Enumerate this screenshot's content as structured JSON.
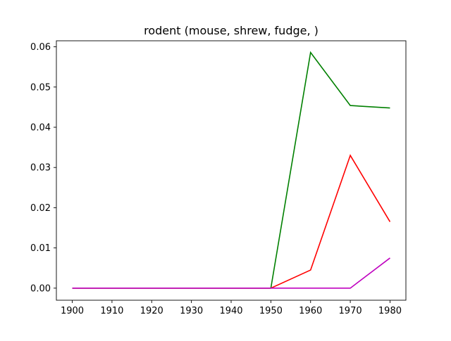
{
  "chart_data": {
    "type": "line",
    "title": "rodent (mouse, shrew, fudge, )",
    "xlabel": "",
    "ylabel": "",
    "x": [
      1900,
      1910,
      1920,
      1930,
      1940,
      1950,
      1960,
      1970,
      1980
    ],
    "xlim": [
      1896,
      1984
    ],
    "ylim": [
      -0.003,
      0.0615
    ],
    "xticks": [
      1900,
      1910,
      1920,
      1930,
      1940,
      1950,
      1960,
      1970,
      1980
    ],
    "yticks": [
      0.0,
      0.01,
      0.02,
      0.03,
      0.04,
      0.05,
      0.06
    ],
    "ytick_labels": [
      "0.00",
      "0.01",
      "0.02",
      "0.03",
      "0.04",
      "0.05",
      "0.06"
    ],
    "grid": false,
    "legend": "none",
    "series": [
      {
        "color": "#008000",
        "values": [
          0,
          0,
          0,
          0,
          0,
          0,
          0.0586,
          0.0454,
          0.0448
        ]
      },
      {
        "color": "#ff0000",
        "values": [
          0,
          0,
          0,
          0,
          0,
          0,
          0.0045,
          0.033,
          0.0165
        ]
      },
      {
        "color": "#bf00bf",
        "values": [
          0,
          0,
          0,
          0,
          0,
          0,
          0,
          0,
          0.0075
        ]
      }
    ]
  }
}
